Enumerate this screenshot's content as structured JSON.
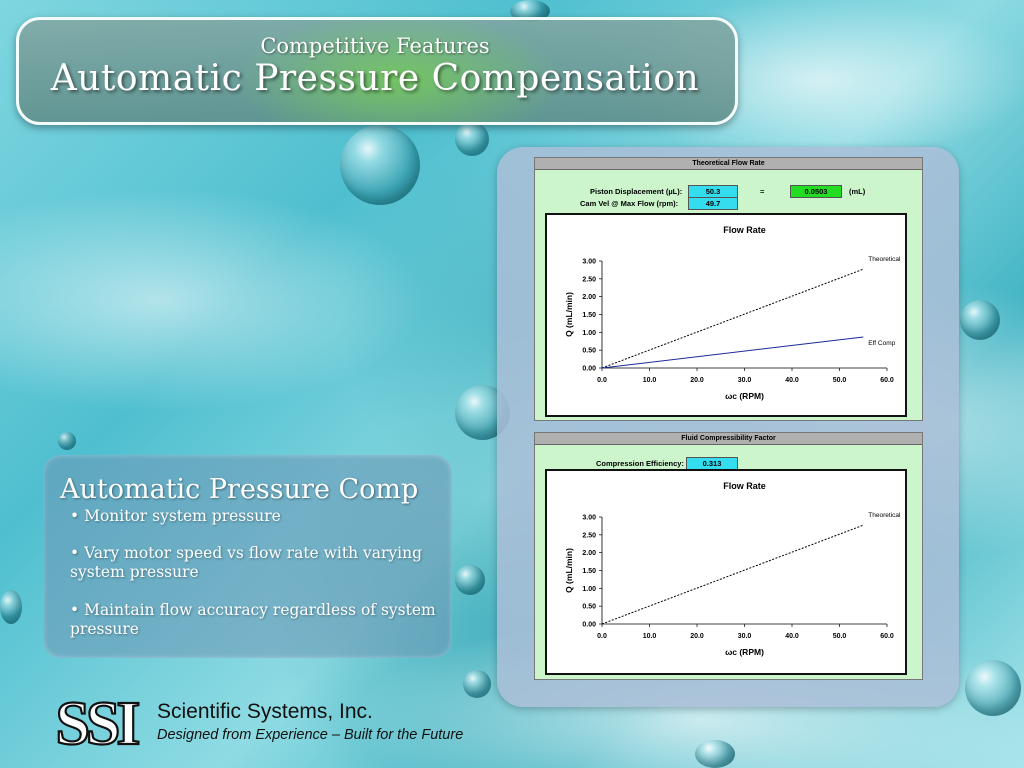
{
  "slide": {
    "subtitle": "Competitive Features",
    "title": "Automatic Pressure Compensation"
  },
  "text_panel": {
    "heading": "Automatic Pressure Comp",
    "bullets": [
      "• Monitor system pressure",
      "• Vary motor speed vs flow rate with varying system pressure",
      "• Maintain flow accuracy regardless of system pressure"
    ]
  },
  "theoretical_panel": {
    "header": "Theoretical Flow Rate",
    "piston_label": "Piston Displacement (µL):",
    "piston_value": "50.3",
    "equals": "=",
    "result_value": "0.0503",
    "result_unit": "(mL)",
    "cam_label": "Cam Vel @ Max Flow (rpm):",
    "cam_value": "49.7"
  },
  "compress_panel": {
    "header": "Fluid Compressibility Factor",
    "eff_label": "Compression Efficiency:",
    "eff_value": "0.313"
  },
  "colors": {
    "cyan_cell": "#33ddee",
    "green_cell": "#22dd22",
    "panel_bg": "#ccf5cc",
    "eff_comp_line": "#1a2a9a"
  },
  "logo": {
    "mark": "SSI",
    "company": "Scientific Systems, Inc.",
    "tagline": "Designed from Experience – Built for the Future"
  },
  "chart_data": [
    {
      "type": "line",
      "title": "Flow Rate",
      "xlabel": "ωc (RPM)",
      "ylabel": "Q (mL/min)",
      "xlim": [
        0,
        60
      ],
      "ylim": [
        0,
        3
      ],
      "x_ticks": [
        "0.0",
        "10.0",
        "20.0",
        "30.0",
        "40.0",
        "50.0",
        "60.0"
      ],
      "y_ticks": [
        "0.00",
        "0.50",
        "1.00",
        "1.50",
        "2.00",
        "2.50",
        "3.00"
      ],
      "series": [
        {
          "name": "Theoretical",
          "style": "dashed",
          "x": [
            0,
            55
          ],
          "y": [
            0,
            2.77
          ]
        },
        {
          "name": "Eff Comp",
          "style": "solid",
          "x": [
            0,
            55
          ],
          "y": [
            0,
            0.87
          ]
        }
      ]
    },
    {
      "type": "line",
      "title": "Flow Rate",
      "xlabel": "ωc (RPM)",
      "ylabel": "Q (mL/min)",
      "xlim": [
        0,
        60
      ],
      "ylim": [
        0,
        3
      ],
      "x_ticks": [
        "0.0",
        "10.0",
        "20.0",
        "30.0",
        "40.0",
        "50.0",
        "60.0"
      ],
      "y_ticks": [
        "0.00",
        "0.50",
        "1.00",
        "1.50",
        "2.00",
        "2.50",
        "3.00"
      ],
      "series": [
        {
          "name": "Theoretical",
          "style": "dashed",
          "x": [
            0,
            55
          ],
          "y": [
            0,
            2.77
          ]
        }
      ]
    }
  ]
}
